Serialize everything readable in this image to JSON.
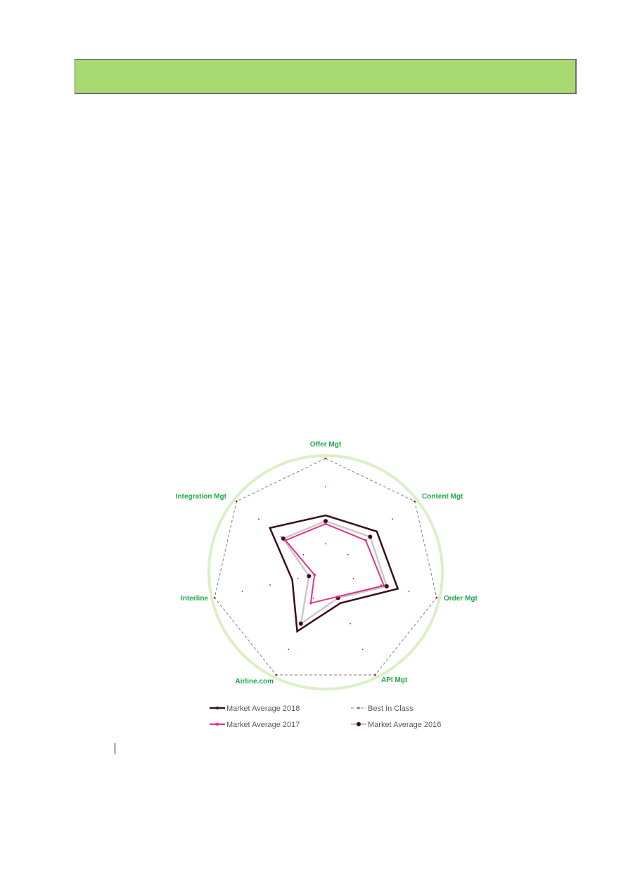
{
  "colors": {
    "header_fill": "#a9d971",
    "axis_label": "#1ea84a",
    "outer_ring": "#dcefc7",
    "ma2018": "#3b0d1c",
    "ma2017": "#e8308b",
    "ma2016": "#c9c9c9",
    "best_in_class": "#808080",
    "tick_marker": "#8b1a1a"
  },
  "chart_data": {
    "type": "radar",
    "axes": [
      "Offer Mgt",
      "Content Mgt",
      "Order Mgt",
      "API Mgt",
      "Airline.com",
      "Interline",
      "Integration Mgt"
    ],
    "rmax": 4,
    "grid_rings": [
      1,
      2,
      3
    ],
    "series": [
      {
        "name": "Market Average 2018",
        "values": [
          2.0,
          2.3,
          2.6,
          1.2,
          2.3,
          1.2,
          2.5
        ]
      },
      {
        "name": "Market Average 2017",
        "values": [
          1.7,
          1.8,
          2.1,
          0.95,
          1.2,
          0.4,
          1.8
        ]
      },
      {
        "name": "Market Average 2016",
        "values": [
          1.8,
          2.0,
          2.2,
          1.0,
          2.0,
          0.6,
          1.9
        ]
      },
      {
        "name": "Best In Class",
        "values": [
          4,
          4,
          4,
          4,
          4,
          4,
          4
        ]
      }
    ],
    "legend": {
      "position": "bottom",
      "entries": [
        "Market Average 2018",
        "Best In Class",
        "Market Average 2017",
        "Market Average 2016"
      ]
    }
  }
}
